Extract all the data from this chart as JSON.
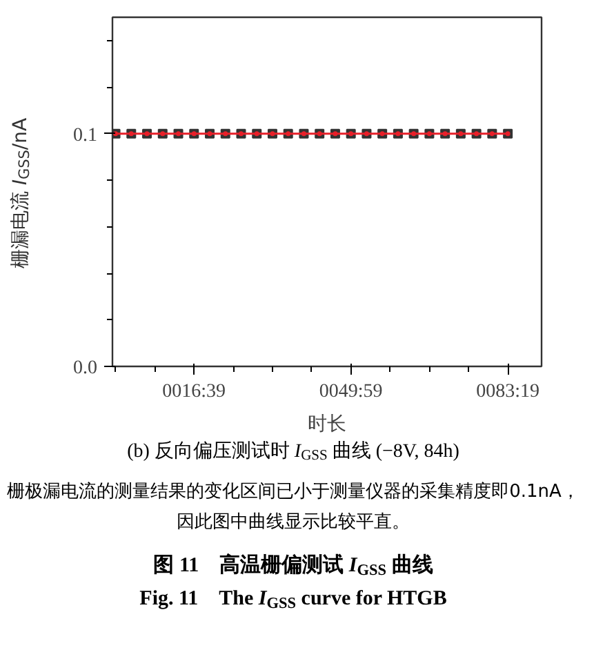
{
  "chart_data": {
    "type": "line",
    "xlabel": "时长",
    "ylabel": "栅漏电流 I$_{GSS}$/nA",
    "categories": [
      null,
      null,
      null,
      null,
      null,
      "0016:39",
      null,
      null,
      null,
      null,
      null,
      null,
      null,
      null,
      null,
      "0049:59",
      null,
      null,
      null,
      null,
      null,
      null,
      null,
      null,
      null,
      "0083:19"
    ],
    "ylim": [
      0,
      0.15
    ],
    "yticks": [
      {
        "value": 0,
        "label": "0.0"
      },
      0.1
    ],
    "series": [
      {
        "type": "scatter",
        "marker": "square",
        "color": "#333333",
        "values": [
          0.1,
          0.1,
          0.1,
          0.1,
          0.1,
          0.1,
          0.1,
          0.1,
          0.1,
          0.1,
          0.1,
          0.1,
          0.1,
          0.1,
          0.1,
          0.1,
          0.1,
          0.1,
          0.1,
          0.1,
          0.1,
          0.1,
          0.1,
          0.1,
          0.1,
          0.1
        ]
      },
      {
        "marker": "circle",
        "color": "#e8202a",
        "values": [
          0.1,
          0.1,
          0.1,
          0.1,
          0.1,
          0.1,
          0.1,
          0.1,
          0.1,
          0.1,
          0.1,
          0.1,
          0.1,
          0.1,
          0.1,
          0.1,
          0.1,
          0.1,
          0.1,
          0.1,
          0.1,
          0.1,
          0.1,
          0.1,
          0.1,
          0.1
        ]
      }
    ],
    "annotations": [
      "(b) 反向偏压测试时 I$_{GSS}$ 曲线 (−8V, 84h)",
      "栅极漏电流的测量结果的变化区间已小于测量仪器的采集精度即0.1nA，因此图中曲线显示比较平直。",
      "图 11　高温栅偏测试 I$_{GSS}$ 曲线",
      "Fig. 11　The I$_{GSS}$ curve for HTGB"
    ]
  }
}
